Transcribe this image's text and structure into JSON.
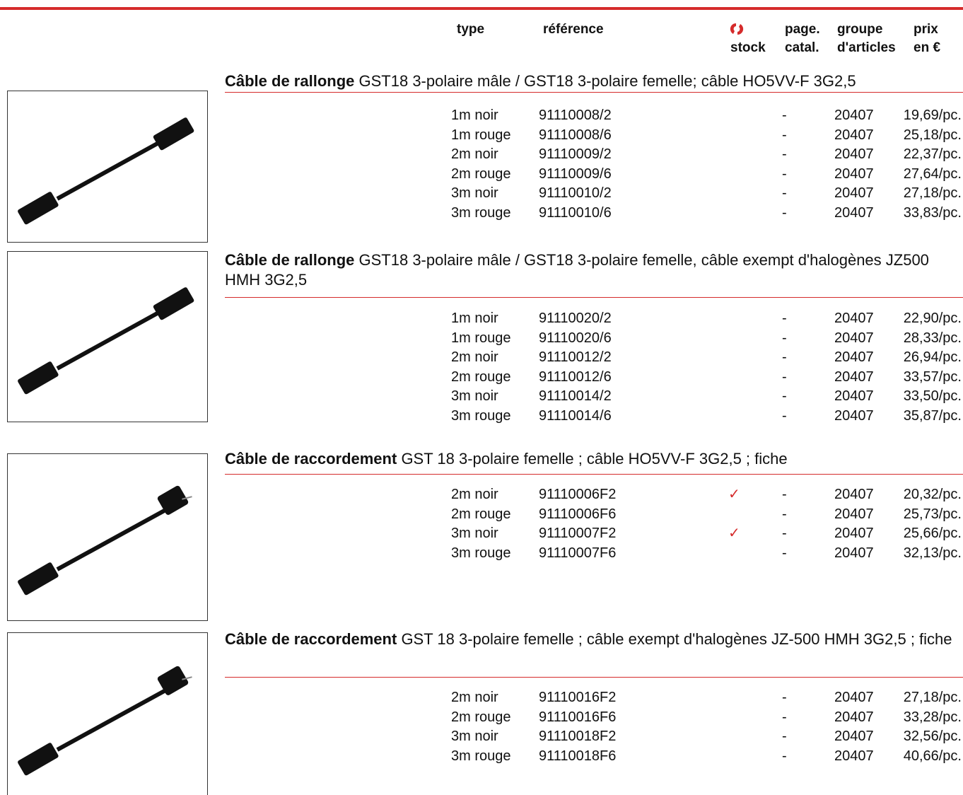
{
  "header": {
    "type": "type",
    "reference": "référence",
    "stock": "stock",
    "page": [
      "page.",
      "catal."
    ],
    "group": [
      "groupe",
      "d'articles"
    ],
    "price": [
      "prix",
      "en €"
    ]
  },
  "sections": [
    {
      "title_bold": "Câble de rallonge",
      "title_rest": "GST18 3-polaire mâle / GST18 3-polaire femelle; câble HO5VV-F 3G2,5",
      "rows": [
        {
          "type": "1m noir",
          "reference": "91110008/2",
          "page": "-",
          "group": "20407",
          "price": "19,69/pc."
        },
        {
          "type": "1m rouge",
          "reference": "91110008/6",
          "page": "-",
          "group": "20407",
          "price": "25,18/pc."
        },
        {
          "type": "2m noir",
          "reference": "91110009/2",
          "page": "-",
          "group": "20407",
          "price": "22,37/pc."
        },
        {
          "type": "2m rouge",
          "reference": "91110009/6",
          "page": "-",
          "group": "20407",
          "price": "27,64/pc."
        },
        {
          "type": "3m noir",
          "reference": "91110010/2",
          "page": "-",
          "group": "20407",
          "price": "27,18/pc."
        },
        {
          "type": "3m rouge",
          "reference": "91110010/6",
          "page": "-",
          "group": "20407",
          "price": "33,83/pc."
        }
      ]
    },
    {
      "title_bold": "Câble de rallonge",
      "title_rest": "GST18 3-polaire mâle / GST18 3-polaire femelle, câble exempt d'halogènes JZ500 HMH 3G2,5",
      "rows": [
        {
          "type": "1m noir",
          "reference": "91110020/2",
          "page": "-",
          "group": "20407",
          "price": "22,90/pc."
        },
        {
          "type": "1m rouge",
          "reference": "91110020/6",
          "page": "-",
          "group": "20407",
          "price": "28,33/pc."
        },
        {
          "type": "2m noir",
          "reference": "91110012/2",
          "page": "-",
          "group": "20407",
          "price": "26,94/pc."
        },
        {
          "type": "2m rouge",
          "reference": "91110012/6",
          "page": "-",
          "group": "20407",
          "price": "33,57/pc."
        },
        {
          "type": "3m noir",
          "reference": "91110014/2",
          "page": "-",
          "group": "20407",
          "price": "33,50/pc."
        },
        {
          "type": "3m rouge",
          "reference": "91110014/6",
          "page": "-",
          "group": "20407",
          "price": "35,87/pc."
        }
      ]
    },
    {
      "title_bold": "Câble de raccordement",
      "title_rest": "GST 18 3-polaire femelle ; câble HO5VV-F 3G2,5 ; fiche",
      "rows": [
        {
          "type": "2m noir",
          "reference": "91110006F2",
          "stock": "✓",
          "page": "-",
          "group": "20407",
          "price": "20,32/pc."
        },
        {
          "type": "2m rouge",
          "reference": "91110006F6",
          "page": "-",
          "group": "20407",
          "price": "25,73/pc."
        },
        {
          "type": "3m noir",
          "reference": "91110007F2",
          "stock": "✓",
          "page": "-",
          "group": "20407",
          "price": "25,66/pc."
        },
        {
          "type": "3m rouge",
          "reference": "91110007F6",
          "page": "-",
          "group": "20407",
          "price": "32,13/pc."
        }
      ]
    },
    {
      "title_bold": "Câble de raccordement",
      "title_rest": "GST 18 3-polaire femelle ; câble exempt d'halogènes JZ-500 HMH 3G2,5 ; fiche",
      "rows": [
        {
          "type": "2m noir",
          "reference": "91110016F2",
          "page": "-",
          "group": "20407",
          "price": "27,18/pc."
        },
        {
          "type": "2m rouge",
          "reference": "91110016F6",
          "page": "-",
          "group": "20407",
          "price": "33,28/pc."
        },
        {
          "type": "3m noir",
          "reference": "91110018F2",
          "page": "-",
          "group": "20407",
          "price": "32,56/pc."
        },
        {
          "type": "3m rouge",
          "reference": "91110018F6",
          "page": "-",
          "group": "20407",
          "price": "40,66/pc."
        }
      ]
    }
  ]
}
